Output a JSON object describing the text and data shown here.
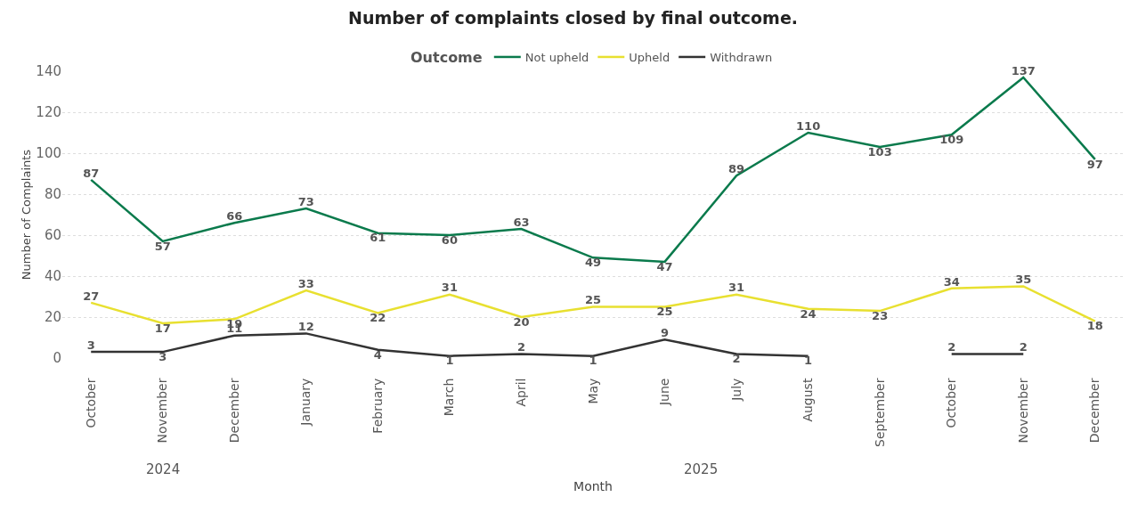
{
  "chart_data": {
    "type": "line",
    "title": "Number of complaints closed by final outcome.",
    "xlabel": "Month",
    "ylabel": "Number of Complaints",
    "legend_title": "Outcome",
    "legend": "top",
    "categories": [
      "October",
      "November",
      "December",
      "January",
      "February",
      "March",
      "April",
      "May",
      "June",
      "July",
      "August",
      "September",
      "October",
      "November",
      "December"
    ],
    "series": [
      {
        "name": "Not upheld",
        "color": "#0a7a4c",
        "values": [
          87,
          57,
          66,
          73,
          61,
          60,
          63,
          49,
          47,
          89,
          110,
          103,
          109,
          137,
          97
        ]
      },
      {
        "name": "Upheld",
        "color": "#e8e030",
        "values": [
          27,
          17,
          19,
          33,
          22,
          31,
          20,
          25,
          25,
          31,
          24,
          23,
          34,
          35,
          18
        ]
      },
      {
        "name": "Withdrawn",
        "color": "#333333",
        "values": [
          3,
          3,
          11,
          12,
          4,
          1,
          2,
          1,
          9,
          2,
          1,
          null,
          2,
          2,
          null
        ]
      }
    ],
    "annotations": [
      "2024",
      "2025"
    ],
    "ylim": [
      0,
      140
    ],
    "yticks": [
      0,
      20,
      40,
      60,
      80,
      100,
      120,
      140
    ],
    "grid": "y",
    "data_labels": true,
    "marker": "none",
    "line_style": "solid"
  }
}
